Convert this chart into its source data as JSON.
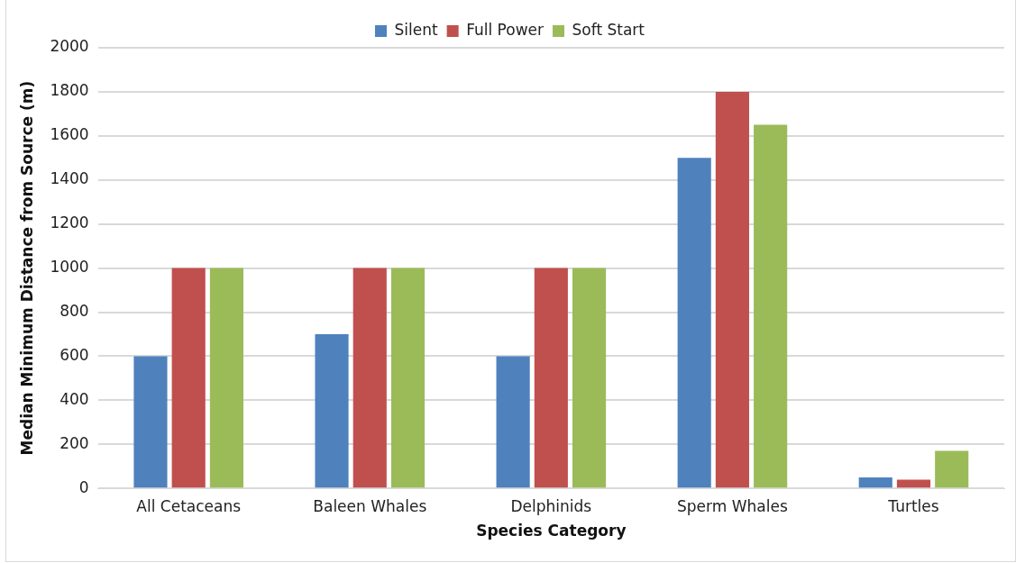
{
  "chart_data": {
    "type": "bar",
    "xlabel": "Species Category",
    "ylabel": "Median Minimum Distance from Source (m)",
    "categories": [
      "All Cetaceans",
      "Baleen Whales",
      "Delphinids",
      "Sperm Whales",
      "Turtles"
    ],
    "series": [
      {
        "name": "Silent",
        "color": "#4f81bd",
        "values": [
          600,
          700,
          600,
          1500,
          50
        ]
      },
      {
        "name": "Full Power",
        "color": "#c0504d",
        "values": [
          1000,
          1000,
          1000,
          1800,
          40
        ]
      },
      {
        "name": "Soft Start",
        "color": "#9bbb59",
        "values": [
          1000,
          1000,
          1000,
          1650,
          170
        ]
      }
    ],
    "ylim": [
      0,
      2000
    ],
    "yticks": [
      0,
      200,
      400,
      600,
      800,
      1000,
      1200,
      1400,
      1600,
      1800,
      2000
    ],
    "grid": "y",
    "legend": "top"
  }
}
